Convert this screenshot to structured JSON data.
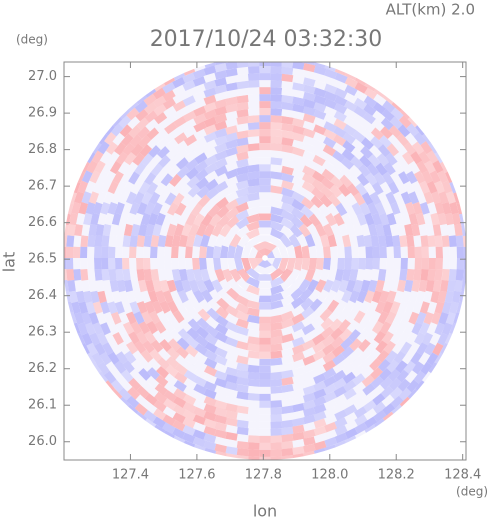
{
  "chart_data": {
    "type": "ppi",
    "title": "2017/10/24 03:32:30",
    "altitude_label": "ALT(km) 2.0",
    "x_label": "lon",
    "y_label": "lat",
    "x_unit": "(deg)",
    "y_unit": "(deg)",
    "xlim": [
      127.2,
      128.41
    ],
    "ylim": [
      25.95,
      27.04
    ],
    "xticks": [
      127.4,
      127.6,
      127.8,
      {
        "value": 128.0,
        "label": "128.0"
      },
      128.2,
      128.4
    ],
    "yticks": [
      {
        "value": 26.0,
        "label": "26.0"
      },
      26.1,
      26.2,
      26.3,
      26.4,
      26.5,
      26.6,
      26.7,
      26.8,
      26.9,
      {
        "value": 27.0,
        "label": "27.0"
      }
    ]
  }
}
